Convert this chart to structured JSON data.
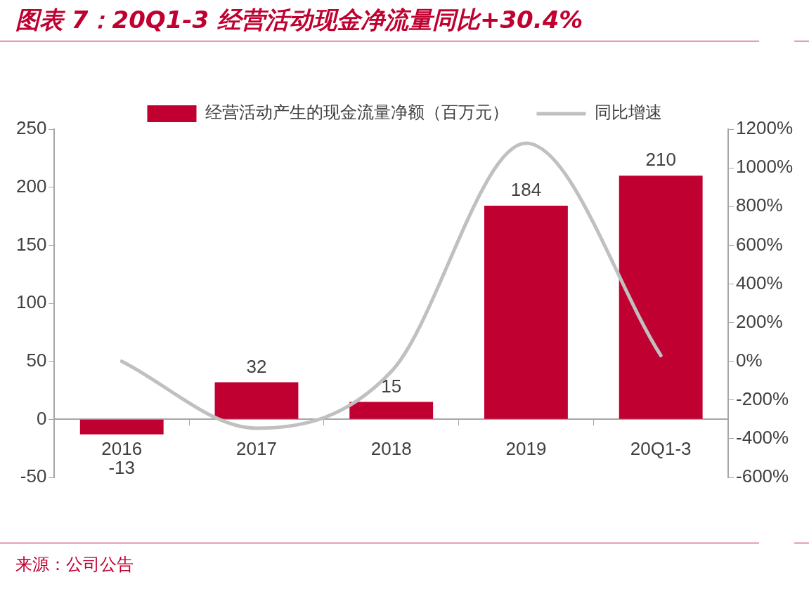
{
  "chart_data": {
    "type": "bar",
    "title": "图表 7：20Q1-3 经营活动现金净流量同比+30.4%",
    "categories": [
      "2016",
      "2017",
      "2018",
      "2019",
      "20Q1-3"
    ],
    "series": [
      {
        "name": "经营活动产生的现金流量净额（百万元）",
        "color": "#c00030",
        "values": [
          -13,
          32,
          15,
          184,
          210
        ],
        "value_labels": [
          "-13",
          "32",
          "15",
          "184",
          "210"
        ]
      },
      {
        "name": "同比增速",
        "type": "line",
        "axis": "y2",
        "color": "#c0c0c0",
        "values": [
          0,
          -346,
          -53,
          1127,
          30
        ]
      }
    ],
    "ylim": [
      -50,
      250
    ],
    "yticks": [
      -50,
      0,
      50,
      100,
      150,
      200,
      250
    ],
    "y2lim": [
      -600,
      1200
    ],
    "y2ticks": [
      {
        "value": -600,
        "label": "-600%"
      },
      {
        "value": -400,
        "label": "-400%"
      },
      {
        "value": -200,
        "label": "-200%"
      },
      {
        "value": 0,
        "label": "0%"
      },
      {
        "value": 200,
        "label": "200%"
      },
      {
        "value": 400,
        "label": "400%"
      },
      {
        "value": 600,
        "label": "600%"
      },
      {
        "value": 800,
        "label": "800%"
      },
      {
        "value": 1000,
        "label": "1000%"
      },
      {
        "value": 1200,
        "label": "1200%"
      }
    ],
    "grid": false,
    "legend": "top",
    "marker": "none",
    "line_style": "solid",
    "annotations": [
      "来源：公司公告"
    ]
  }
}
